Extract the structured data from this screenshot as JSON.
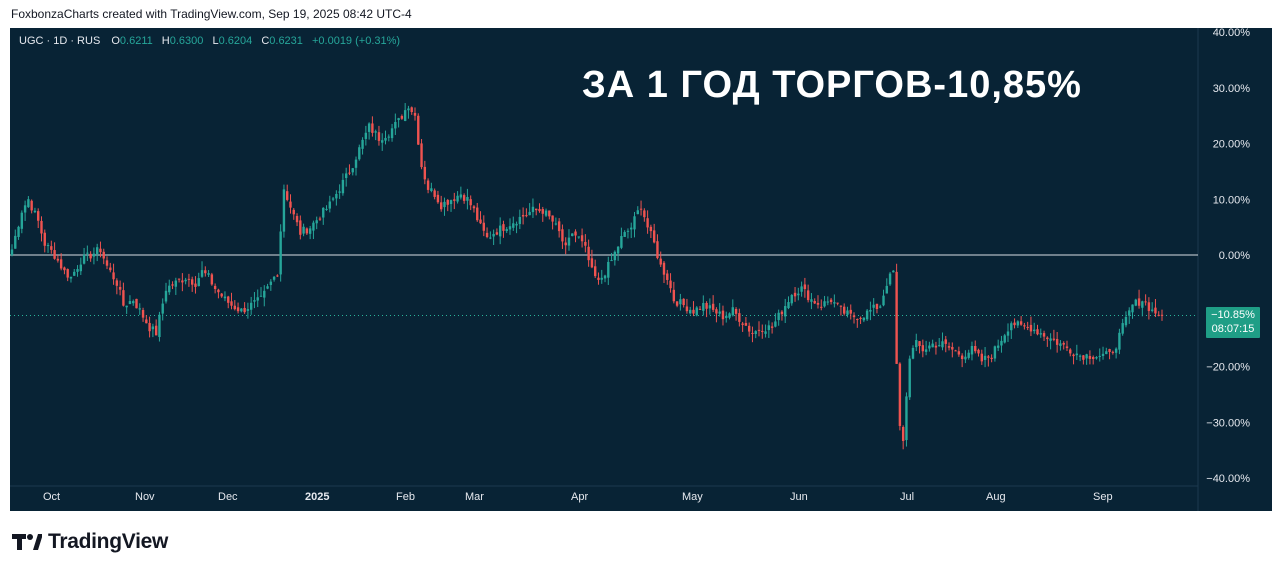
{
  "header": {
    "attribution": "FoxbonzaCharts created with TradingView.com, Sep 19, 2025 08:42 UTC-4"
  },
  "legend": {
    "symbol": "UGC · 1D · RUS",
    "open_label": "O",
    "open": "0.6211",
    "high_label": "H",
    "high": "0.6300",
    "low_label": "L",
    "low": "0.6204",
    "close_label": "C",
    "close": "0.6231",
    "change": "+0.0019 (+0.31%)"
  },
  "overlay": {
    "title": "ЗА 1 ГОД ТОРГОВ-10,85%"
  },
  "price_badge": {
    "value": "−10.85%",
    "countdown": "08:07:15"
  },
  "brand": {
    "name": "TradingView",
    "logo_icon": "tradingview-logo-icon"
  },
  "colors": {
    "background": "#082335",
    "up": "#26a69a",
    "down": "#ef5350",
    "axis_text": "#e6e9ef",
    "zero_line": "#d9dde3",
    "badge": "#1f9e86"
  },
  "chart_data": {
    "type": "candlestick",
    "y_unit": "% change",
    "ylim": [
      -40,
      40
    ],
    "y_ticks": [
      40,
      30,
      20,
      10,
      0,
      -20,
      -30,
      -40
    ],
    "y_tick_labels": [
      "40.00%",
      "30.00%",
      "20.00%",
      "10.00%",
      "0.00%",
      "−20.00%",
      "−30.00%",
      "−40.00%"
    ],
    "x_ticks": [
      "Oct",
      "Nov",
      "Dec",
      "2025",
      "Feb",
      "Mar",
      "Apr",
      "May",
      "Jun",
      "Jul",
      "Aug",
      "Sep"
    ],
    "reference_line": 0,
    "last_value": -10.85,
    "grid": false,
    "waypoints": [
      [
        0,
        1
      ],
      [
        3,
        8
      ],
      [
        5,
        10
      ],
      [
        8,
        6
      ],
      [
        10,
        2
      ],
      [
        13,
        0
      ],
      [
        16,
        -3
      ],
      [
        18,
        -4
      ],
      [
        21,
        -1
      ],
      [
        24,
        0
      ],
      [
        27,
        1
      ],
      [
        29,
        -2
      ],
      [
        32,
        -5
      ],
      [
        34,
        -9
      ],
      [
        37,
        -8
      ],
      [
        40,
        -11
      ],
      [
        42,
        -13
      ],
      [
        44,
        -14
      ],
      [
        47,
        -6
      ],
      [
        50,
        -5
      ],
      [
        53,
        -4
      ],
      [
        56,
        -5
      ],
      [
        58,
        -3
      ],
      [
        60,
        -4
      ],
      [
        62,
        -6
      ],
      [
        65,
        -8
      ],
      [
        67,
        -9
      ],
      [
        70,
        -10
      ],
      [
        73,
        -9
      ],
      [
        76,
        -8
      ],
      [
        78,
        -6
      ],
      [
        81,
        -3
      ],
      [
        83,
        12
      ],
      [
        86,
        7
      ],
      [
        88,
        4
      ],
      [
        91,
        5
      ],
      [
        94,
        7
      ],
      [
        97,
        9
      ],
      [
        100,
        12
      ],
      [
        103,
        15
      ],
      [
        106,
        19
      ],
      [
        109,
        23
      ],
      [
        112,
        21
      ],
      [
        115,
        22
      ],
      [
        118,
        24
      ],
      [
        121,
        27
      ],
      [
        123,
        25
      ],
      [
        125,
        16
      ],
      [
        127,
        12
      ],
      [
        129,
        11
      ],
      [
        131,
        9
      ],
      [
        134,
        10
      ],
      [
        137,
        11
      ],
      [
        139,
        10
      ],
      [
        141,
        8
      ],
      [
        143,
        5
      ],
      [
        145,
        3
      ],
      [
        147,
        4
      ],
      [
        150,
        5
      ],
      [
        153,
        6
      ],
      [
        156,
        7
      ],
      [
        159,
        8
      ],
      [
        162,
        8
      ],
      [
        165,
        6
      ],
      [
        167,
        4
      ],
      [
        169,
        1
      ],
      [
        171,
        4
      ],
      [
        173,
        3
      ],
      [
        175,
        1
      ],
      [
        177,
        -3
      ],
      [
        179,
        -5
      ],
      [
        181,
        -3
      ],
      [
        183,
        -1
      ],
      [
        186,
        3
      ],
      [
        189,
        5
      ],
      [
        192,
        9
      ],
      [
        194,
        5
      ],
      [
        196,
        2
      ],
      [
        198,
        -2
      ],
      [
        200,
        -4
      ],
      [
        202,
        -8
      ],
      [
        205,
        -9
      ],
      [
        208,
        -10
      ],
      [
        211,
        -9
      ],
      [
        214,
        -10
      ],
      [
        217,
        -11
      ],
      [
        220,
        -10
      ],
      [
        223,
        -12
      ],
      [
        226,
        -14
      ],
      [
        229,
        -13
      ],
      [
        232,
        -13
      ],
      [
        235,
        -10
      ],
      [
        238,
        -7
      ],
      [
        241,
        -6
      ],
      [
        244,
        -8
      ],
      [
        247,
        -9
      ],
      [
        250,
        -8
      ],
      [
        253,
        -10
      ],
      [
        256,
        -11
      ],
      [
        259,
        -11
      ],
      [
        262,
        -10
      ],
      [
        265,
        -9
      ],
      [
        267,
        -5
      ],
      [
        269,
        -3
      ],
      [
        270,
        -20
      ],
      [
        271,
        -31
      ],
      [
        272,
        -33
      ],
      [
        274,
        -18
      ],
      [
        276,
        -16
      ],
      [
        278,
        -17
      ],
      [
        281,
        -16
      ],
      [
        284,
        -16
      ],
      [
        287,
        -17
      ],
      [
        290,
        -18
      ],
      [
        293,
        -17
      ],
      [
        296,
        -19
      ],
      [
        299,
        -18
      ],
      [
        302,
        -15
      ],
      [
        305,
        -12
      ],
      [
        308,
        -13
      ],
      [
        311,
        -13
      ],
      [
        314,
        -14
      ],
      [
        317,
        -15
      ],
      [
        320,
        -16
      ],
      [
        323,
        -17
      ],
      [
        326,
        -18
      ],
      [
        329,
        -18
      ],
      [
        332,
        -18
      ],
      [
        335,
        -18
      ],
      [
        337,
        -16
      ],
      [
        339,
        -13
      ],
      [
        342,
        -9
      ],
      [
        345,
        -8
      ],
      [
        348,
        -10
      ],
      [
        351,
        -10.85
      ]
    ]
  }
}
